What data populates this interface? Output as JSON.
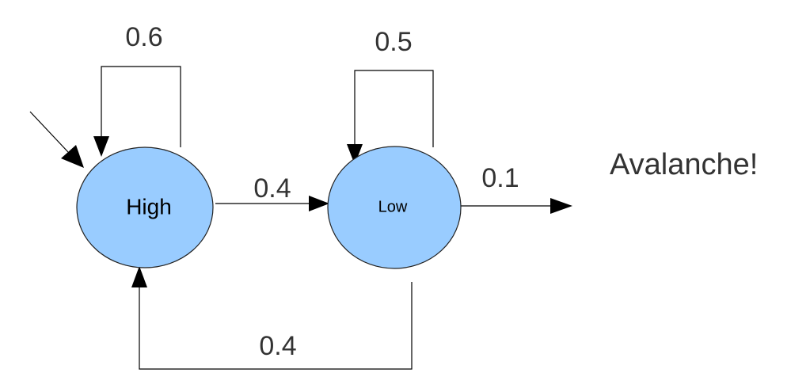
{
  "colors": {
    "node_fill": "#99ccff",
    "node_stroke": "#222222",
    "edge": "#000000",
    "text": "#333333"
  },
  "nodes": {
    "high": {
      "label": "High"
    },
    "low": {
      "label": "Low"
    }
  },
  "edges": {
    "high_self": {
      "label": "0.6"
    },
    "low_self": {
      "label": "0.5"
    },
    "high_to_low": {
      "label": "0.4"
    },
    "low_to_high": {
      "label": "0.4"
    },
    "low_to_avalanche": {
      "label": "0.1"
    }
  },
  "terminal": {
    "label": "Avalanche!"
  }
}
